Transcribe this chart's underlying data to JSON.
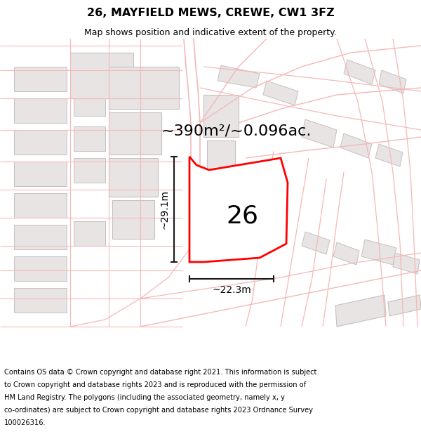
{
  "title": "26, MAYFIELD MEWS, CREWE, CW1 3FZ",
  "subtitle": "Map shows position and indicative extent of the property.",
  "area_label": "~390m²/~0.096ac.",
  "plot_number": "26",
  "dim_width": "~22.3m",
  "dim_height": "~29.1m",
  "footer_lines": [
    "Contains OS data © Crown copyright and database right 2021. This information is subject",
    "to Crown copyright and database rights 2023 and is reproduced with the permission of",
    "HM Land Registry. The polygons (including the associated geometry, namely x, y",
    "co-ordinates) are subject to Crown copyright and database rights 2023 Ordnance Survey",
    "100026316."
  ],
  "bg_color": "#ffffff",
  "map_bg": "#ffffff",
  "plot_fill": "#ffffff",
  "plot_edge": "#ff0000",
  "road_color": "#f5b8b8",
  "building_fill": "#e8e4e4",
  "building_edge": "#c8c0c0",
  "dim_line_color": "#1a1a1a",
  "title_color": "#000000",
  "footer_color": "#000000",
  "road_linewidth": 1.0,
  "plot_linewidth": 2.0,
  "area_label_fontsize": 16,
  "plot_num_fontsize": 26,
  "dim_fontsize": 10
}
